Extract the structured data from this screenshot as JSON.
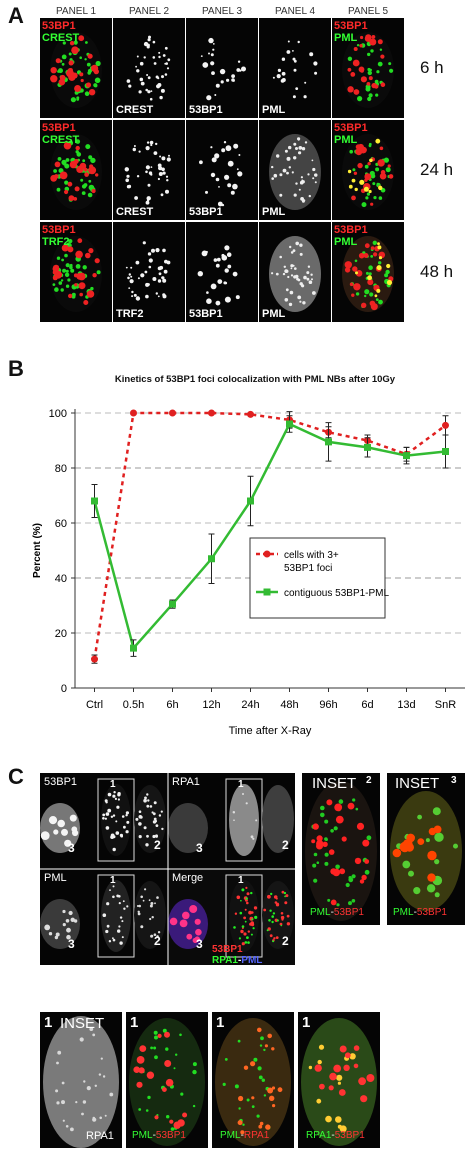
{
  "panel_a": {
    "letter": "A",
    "headers": [
      "PANEL 1",
      "PANEL 2",
      "PANEL 3",
      "PANEL 4",
      "PANEL 5"
    ],
    "rows": [
      {
        "time": "6 h",
        "p1_red": "53BP1",
        "p1_green": "CREST",
        "p2": "CREST",
        "p3": "53BP1",
        "p4": "PML",
        "p5_red": "53BP1",
        "p5_green": "PML"
      },
      {
        "time": "24 h",
        "p1_red": "53BP1",
        "p1_green": "CREST",
        "p2": "CREST",
        "p3": "53BP1",
        "p4": "PML",
        "p5_red": "53BP1",
        "p5_green": "PML"
      },
      {
        "time": "48 h",
        "p1_red": "53BP1",
        "p1_green": "TRF2",
        "p2": "TRF2",
        "p3": "53BP1",
        "p4": "PML",
        "p5_red": "53BP1",
        "p5_green": "PML"
      }
    ]
  },
  "panel_b": {
    "letter": "B"
  },
  "chart_data": {
    "type": "line",
    "title": "Kinetics of 53BP1 foci colocalization with PML NBs after 10Gy",
    "xlabel": "Time after X-Ray",
    "ylabel": "Percent (%)",
    "categories": [
      "Ctrl",
      "0.5h",
      "6h",
      "12h",
      "24h",
      "48h",
      "96h",
      "6d",
      "13d",
      "SnR"
    ],
    "ylim": [
      0,
      100
    ],
    "yticks": [
      0,
      20,
      40,
      60,
      80,
      100
    ],
    "grid": "horizontal dashed",
    "legend_position": "center-right",
    "series": [
      {
        "name": "cells with 3+ 53BP1 foci",
        "color": "#e02020",
        "values": [
          10.5,
          100,
          100,
          100,
          99.5,
          97.5,
          93,
          90,
          85,
          95.5
        ],
        "errors": [
          1.5,
          0.5,
          0.5,
          0.5,
          0.5,
          3,
          2,
          2,
          2.5,
          3.5
        ]
      },
      {
        "name": "contiguous 53BP1-PML",
        "color": "#33bb33",
        "values": [
          68,
          14.5,
          30.5,
          47,
          68,
          96,
          89.5,
          87.5,
          84.5,
          86
        ],
        "errors": [
          6,
          3,
          1.5,
          9,
          9,
          3,
          7,
          3.5,
          3,
          6
        ]
      }
    ]
  },
  "panel_c": {
    "letter": "C",
    "grid_labels": {
      "tl": "53BP1",
      "tr": "RPA1",
      "bl": "PML",
      "br": "Merge"
    },
    "merge_red": "53BP1",
    "merge_green": "RPA1",
    "merge_blue": "PML",
    "merge_dash": "-",
    "inset2_title": "INSET",
    "inset3_title": "INSET",
    "inset_caption_green": "PML",
    "inset_caption_red": "53BP1",
    "num1": "1",
    "num2": "2",
    "num3": "3",
    "bottom": {
      "b1_title": "INSET",
      "b1_label": "RPA1",
      "b2_green": "PML",
      "b2_red": "53BP1",
      "b3_green": "PML",
      "b3_red": "RPA1",
      "b4_green": "RPA1",
      "b4_red": "53BP1"
    }
  }
}
